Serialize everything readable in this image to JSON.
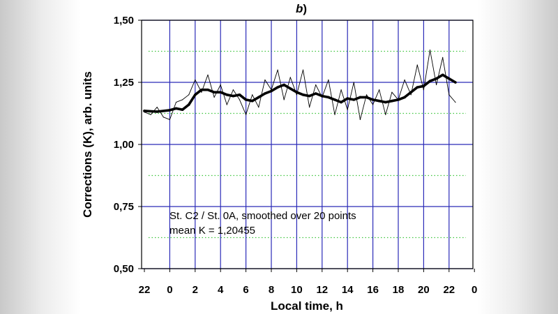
{
  "chart_data": {
    "type": "line",
    "panel_label": "b",
    "panel_label_paren": ")",
    "xlabel": "Local time, h",
    "ylabel": "Corrections (K), arb. units",
    "x_tick_labels": [
      "22",
      "0",
      "2",
      "4",
      "6",
      "8",
      "10",
      "12",
      "14",
      "16",
      "18",
      "20",
      "22",
      "0"
    ],
    "y_tick_labels": [
      "0,50",
      "0,75",
      "1,00",
      "1,25",
      "1,50"
    ],
    "y_ticks": [
      0.5,
      0.75,
      1.0,
      1.25,
      1.5
    ],
    "y_minor_dotted": [
      0.625,
      0.875,
      1.125,
      1.375
    ],
    "ylim": [
      0.5,
      1.5
    ],
    "xlim": [
      -2,
      24.5
    ],
    "grid": true,
    "annotation": [
      "St. C2 / St. 0A, smoothed over 20 points",
      "mean K = 1,20455"
    ],
    "series": [
      {
        "style": "thin-noisy",
        "x": [
          -2.0,
          -1.5,
          -1.0,
          -0.5,
          0.0,
          0.5,
          1.0,
          1.5,
          2.0,
          2.5,
          3.0,
          3.5,
          4.0,
          4.5,
          5.0,
          5.5,
          6.0,
          6.5,
          7.0,
          7.5,
          8.0,
          8.5,
          9.0,
          9.5,
          10.0,
          10.5,
          11.0,
          11.5,
          12.0,
          12.5,
          13.0,
          13.5,
          14.0,
          14.5,
          15.0,
          15.5,
          16.0,
          16.5,
          17.0,
          17.5,
          18.0,
          18.5,
          19.0,
          19.5,
          20.0,
          20.5,
          21.0,
          21.5,
          22.0,
          22.5
        ],
        "y": [
          1.13,
          1.12,
          1.15,
          1.11,
          1.1,
          1.17,
          1.18,
          1.2,
          1.26,
          1.21,
          1.28,
          1.19,
          1.24,
          1.16,
          1.22,
          1.18,
          1.12,
          1.2,
          1.15,
          1.26,
          1.22,
          1.3,
          1.18,
          1.27,
          1.2,
          1.3,
          1.15,
          1.24,
          1.19,
          1.26,
          1.12,
          1.22,
          1.14,
          1.25,
          1.1,
          1.2,
          1.16,
          1.22,
          1.12,
          1.21,
          1.18,
          1.26,
          1.2,
          1.32,
          1.22,
          1.38,
          1.24,
          1.35,
          1.2,
          1.17
        ]
      },
      {
        "style": "thick-smoothed",
        "x": [
          -2.0,
          -1.0,
          0.0,
          0.5,
          1.0,
          1.5,
          2.0,
          2.5,
          3.0,
          3.5,
          4.0,
          4.5,
          5.0,
          5.5,
          6.0,
          6.5,
          7.0,
          7.5,
          8.0,
          8.5,
          9.0,
          9.5,
          10.0,
          10.5,
          11.0,
          11.5,
          12.0,
          12.5,
          13.0,
          13.5,
          14.0,
          14.5,
          15.0,
          15.5,
          16.0,
          16.5,
          17.0,
          17.5,
          18.0,
          18.5,
          19.0,
          19.5,
          20.0,
          20.5,
          21.0,
          21.5,
          22.0,
          22.5
        ],
        "y": [
          1.135,
          1.132,
          1.138,
          1.145,
          1.14,
          1.16,
          1.2,
          1.22,
          1.22,
          1.21,
          1.21,
          1.2,
          1.195,
          1.2,
          1.18,
          1.175,
          1.19,
          1.205,
          1.215,
          1.23,
          1.24,
          1.225,
          1.21,
          1.2,
          1.195,
          1.205,
          1.195,
          1.19,
          1.18,
          1.17,
          1.185,
          1.18,
          1.19,
          1.19,
          1.18,
          1.175,
          1.17,
          1.175,
          1.18,
          1.19,
          1.21,
          1.23,
          1.235,
          1.255,
          1.265,
          1.28,
          1.265,
          1.25
        ]
      }
    ]
  }
}
